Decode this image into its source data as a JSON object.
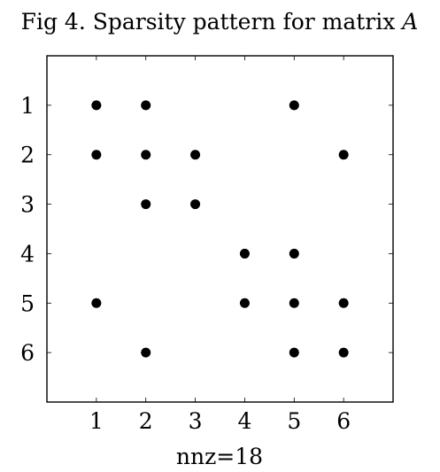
{
  "chart_data": {
    "type": "scatter",
    "title": "Fig 4. Sparsity pattern for matrix A",
    "xlabel": "nnz=18",
    "ylabel": "",
    "x_ticks": [
      1,
      2,
      3,
      4,
      5,
      6
    ],
    "y_ticks": [
      1,
      2,
      3,
      4,
      5,
      6
    ],
    "xlim": [
      0,
      7
    ],
    "ylim": [
      0,
      7
    ],
    "y_reversed": true,
    "grid": false,
    "marker_color": "#000000",
    "series": [
      {
        "points": [
          {
            "x": 1,
            "y": 1
          },
          {
            "x": 2,
            "y": 1
          },
          {
            "x": 5,
            "y": 1
          },
          {
            "x": 1,
            "y": 2
          },
          {
            "x": 2,
            "y": 2
          },
          {
            "x": 3,
            "y": 2
          },
          {
            "x": 6,
            "y": 2
          },
          {
            "x": 2,
            "y": 3
          },
          {
            "x": 3,
            "y": 3
          },
          {
            "x": 4,
            "y": 4
          },
          {
            "x": 5,
            "y": 4
          },
          {
            "x": 1,
            "y": 5
          },
          {
            "x": 4,
            "y": 5
          },
          {
            "x": 5,
            "y": 5
          },
          {
            "x": 6,
            "y": 5
          },
          {
            "x": 2,
            "y": 6
          },
          {
            "x": 5,
            "y": 6
          },
          {
            "x": 6,
            "y": 6
          }
        ]
      }
    ]
  }
}
